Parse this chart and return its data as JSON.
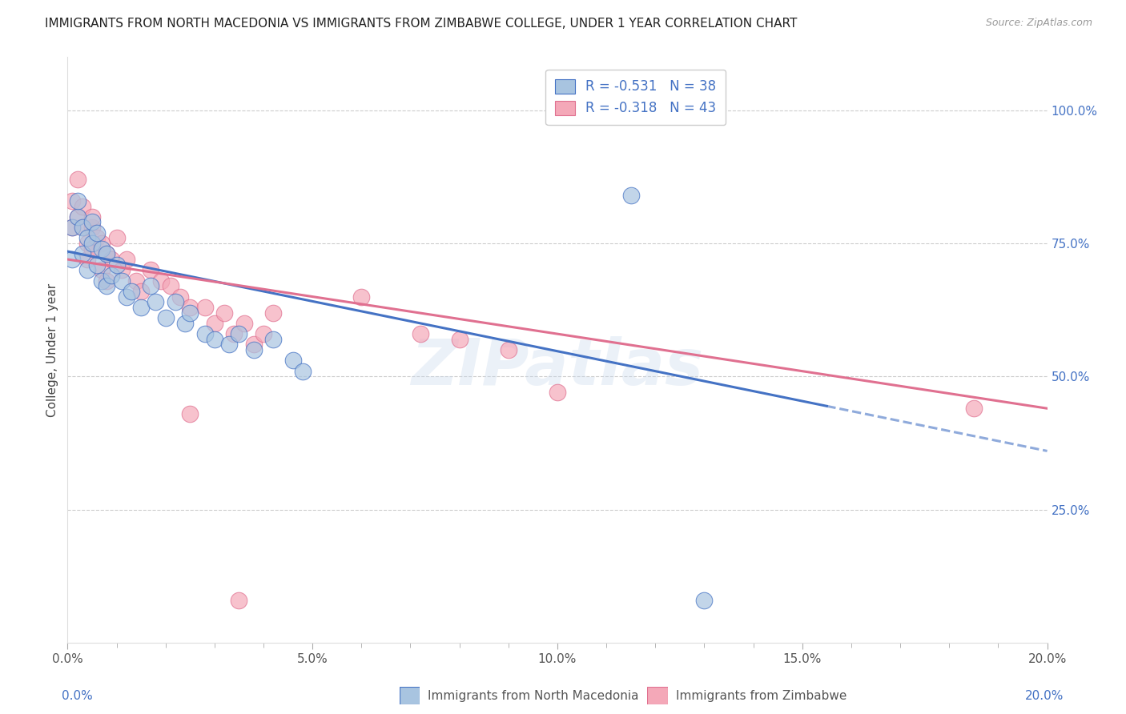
{
  "title": "IMMIGRANTS FROM NORTH MACEDONIA VS IMMIGRANTS FROM ZIMBABWE COLLEGE, UNDER 1 YEAR CORRELATION CHART",
  "source": "Source: ZipAtlas.com",
  "ylabel": "College, Under 1 year",
  "x_tick_labels": [
    "0.0%",
    "",
    "",
    "",
    "",
    "5.0%",
    "",
    "",
    "",
    "",
    "10.0%",
    "",
    "",
    "",
    "",
    "15.0%",
    "",
    "",
    "",
    "",
    "20.0%"
  ],
  "x_tick_values": [
    0.0,
    0.01,
    0.02,
    0.03,
    0.04,
    0.05,
    0.06,
    0.07,
    0.08,
    0.09,
    0.1,
    0.11,
    0.12,
    0.13,
    0.14,
    0.15,
    0.16,
    0.17,
    0.18,
    0.19,
    0.2
  ],
  "x_tick_labels_major": [
    "0.0%",
    "5.0%",
    "10.0%",
    "15.0%",
    "20.0%"
  ],
  "x_tick_values_major": [
    0.0,
    0.05,
    0.1,
    0.15,
    0.2
  ],
  "y_tick_labels_right": [
    "100.0%",
    "75.0%",
    "50.0%",
    "25.0%"
  ],
  "y_tick_right_values": [
    1.0,
    0.75,
    0.5,
    0.25
  ],
  "xlim": [
    0.0,
    0.2
  ],
  "ylim": [
    0.0,
    1.1
  ],
  "legend_r1": "R = -0.531",
  "legend_n1": "N = 38",
  "legend_r2": "R = -0.318",
  "legend_n2": "N = 43",
  "color_blue": "#a8c4e0",
  "color_pink": "#f4a8b8",
  "line_color_blue": "#4472c4",
  "line_color_pink": "#e07090",
  "watermark": "ZIPatlas",
  "north_macedonia_x": [
    0.001,
    0.001,
    0.002,
    0.002,
    0.003,
    0.003,
    0.004,
    0.004,
    0.005,
    0.005,
    0.006,
    0.006,
    0.007,
    0.007,
    0.008,
    0.008,
    0.009,
    0.01,
    0.011,
    0.012,
    0.013,
    0.015,
    0.017,
    0.018,
    0.02,
    0.022,
    0.024,
    0.025,
    0.028,
    0.03,
    0.033,
    0.035,
    0.038,
    0.042,
    0.046,
    0.115,
    0.048,
    0.13
  ],
  "north_macedonia_y": [
    0.72,
    0.78,
    0.8,
    0.83,
    0.78,
    0.73,
    0.76,
    0.7,
    0.75,
    0.79,
    0.71,
    0.77,
    0.68,
    0.74,
    0.73,
    0.67,
    0.69,
    0.71,
    0.68,
    0.65,
    0.66,
    0.63,
    0.67,
    0.64,
    0.61,
    0.64,
    0.6,
    0.62,
    0.58,
    0.57,
    0.56,
    0.58,
    0.55,
    0.57,
    0.53,
    0.84,
    0.51,
    0.08
  ],
  "zimbabwe_x": [
    0.001,
    0.001,
    0.002,
    0.002,
    0.003,
    0.003,
    0.004,
    0.004,
    0.005,
    0.005,
    0.005,
    0.006,
    0.007,
    0.007,
    0.008,
    0.008,
    0.009,
    0.01,
    0.011,
    0.012,
    0.014,
    0.015,
    0.017,
    0.019,
    0.021,
    0.023,
    0.025,
    0.028,
    0.03,
    0.032,
    0.034,
    0.036,
    0.038,
    0.04,
    0.042,
    0.06,
    0.072,
    0.08,
    0.09,
    0.1,
    0.025,
    0.035,
    0.185
  ],
  "zimbabwe_y": [
    0.78,
    0.83,
    0.8,
    0.87,
    0.82,
    0.78,
    0.75,
    0.72,
    0.78,
    0.74,
    0.8,
    0.76,
    0.7,
    0.75,
    0.73,
    0.68,
    0.72,
    0.76,
    0.7,
    0.72,
    0.68,
    0.66,
    0.7,
    0.68,
    0.67,
    0.65,
    0.63,
    0.63,
    0.6,
    0.62,
    0.58,
    0.6,
    0.56,
    0.58,
    0.62,
    0.65,
    0.58,
    0.57,
    0.55,
    0.47,
    0.43,
    0.08,
    0.44
  ],
  "line_blue_x0": 0.0,
  "line_blue_y0": 0.735,
  "line_blue_x1": 0.2,
  "line_blue_y1": 0.36,
  "line_blue_dash_start": 0.155,
  "line_pink_x0": 0.0,
  "line_pink_y0": 0.72,
  "line_pink_x1": 0.2,
  "line_pink_y1": 0.44
}
